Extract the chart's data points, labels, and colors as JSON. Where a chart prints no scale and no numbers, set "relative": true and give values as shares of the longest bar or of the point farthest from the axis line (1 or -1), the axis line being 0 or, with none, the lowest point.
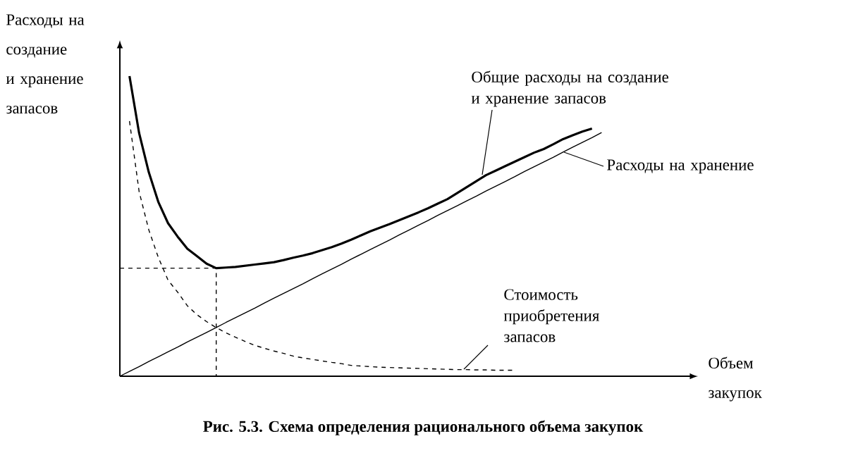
{
  "chart_data": {
    "type": "line",
    "relative": true,
    "xlabel": "Объем закупок",
    "ylabel": "Расходы на создание и хранение запасов",
    "categories": [
      null,
      null,
      null,
      null,
      null,
      null,
      null,
      null,
      null,
      null,
      null,
      null,
      null,
      null,
      null,
      null,
      null,
      null,
      null,
      null,
      null,
      null,
      null,
      null,
      null,
      null,
      null,
      null,
      null,
      null,
      null,
      null,
      null,
      null,
      null,
      null,
      null,
      null,
      null,
      null,
      null,
      null,
      null,
      null,
      null,
      null,
      null,
      null,
      null,
      null,
      null,
      null,
      null,
      null,
      null,
      null,
      null,
      null,
      null,
      null,
      null
    ],
    "series": [
      {
        "name": "Общие расходы на создание и хранение запасов",
        "color": "#000000",
        "line_style": "solid",
        "values": [
          null,
          1.0,
          0.81,
          0.68,
          0.58,
          0.51,
          0.465,
          0.425,
          0.4,
          0.375,
          0.36,
          0.362,
          0.364,
          0.368,
          0.372,
          0.376,
          0.38,
          0.387,
          0.395,
          0.402,
          0.41,
          0.42,
          0.43,
          0.442,
          0.455,
          0.469,
          0.483,
          0.495,
          0.507,
          0.52,
          0.533,
          0.546,
          0.56,
          0.575,
          0.59,
          0.61,
          0.63,
          0.65,
          0.67,
          0.685,
          0.7,
          0.715,
          0.73,
          0.745,
          0.757,
          0.773,
          0.79,
          0.803,
          0.815,
          0.825,
          null,
          null,
          null,
          null,
          null,
          null,
          null,
          null,
          null,
          null,
          null
        ]
      },
      {
        "name": "Расходы на хранение",
        "color": "#000000",
        "line_style": "solid",
        "values": [
          0,
          0.016,
          0.032,
          0.049,
          0.065,
          0.081,
          0.097,
          0.114,
          0.13,
          0.146,
          0.162,
          0.179,
          0.195,
          0.211,
          0.227,
          0.244,
          0.26,
          0.276,
          0.292,
          0.308,
          0.325,
          0.341,
          0.357,
          0.373,
          0.39,
          0.406,
          0.422,
          0.438,
          0.454,
          0.471,
          0.487,
          0.503,
          0.519,
          0.536,
          0.552,
          0.568,
          0.584,
          0.6,
          0.617,
          0.633,
          0.649,
          0.665,
          0.682,
          0.698,
          0.714,
          0.73,
          0.747,
          0.763,
          0.779,
          0.795,
          0.812,
          null,
          null,
          null,
          null,
          null,
          null,
          null,
          null,
          null,
          null
        ]
      },
      {
        "name": "Стоимость приобретения запасов",
        "color": "#000000",
        "line_style": "dashed",
        "values": [
          null,
          0.85,
          0.615,
          0.488,
          0.395,
          0.32,
          0.28,
          0.235,
          0.205,
          0.182,
          0.162,
          0.145,
          0.13,
          0.116,
          0.103,
          0.093,
          0.084,
          0.076,
          0.067,
          0.061,
          0.056,
          0.051,
          0.046,
          0.042,
          0.036,
          0.034,
          0.032,
          0.03,
          0.029,
          0.028,
          0.027,
          0.026,
          0.025,
          0.024,
          0.023,
          0.022,
          0.022,
          0.021,
          0.021,
          0.02,
          0.02,
          0.02,
          null,
          null,
          null,
          null,
          null,
          null,
          null,
          null,
          null,
          null,
          null,
          null,
          null,
          null,
          null,
          null,
          null,
          null,
          null
        ]
      }
    ],
    "ref_lines": [
      {
        "axis": "y",
        "value": 0.36,
        "line_style": "dashed",
        "color": "#000000"
      }
    ],
    "annotations": [
      "Рис. 5.3. Схема определения рационального объема закупок"
    ]
  }
}
